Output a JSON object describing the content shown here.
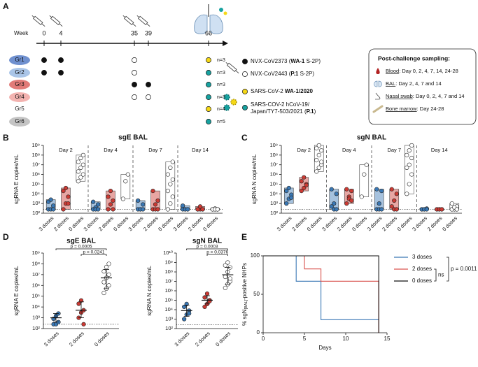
{
  "panels": [
    "A",
    "B",
    "C",
    "D",
    "E"
  ],
  "schedule": {
    "week_label": "Week",
    "weeks": [
      "0",
      "4",
      "35",
      "39",
      "66"
    ],
    "mark_styles": {
      "filled": "#111111",
      "open": "#ffffff",
      "wa1": "#f5d816",
      "p1": "#17a2a0"
    },
    "groups": [
      {
        "label": "Gr1",
        "color": "#6f90cf",
        "n": "n=3",
        "marks": [
          "filled",
          "filled",
          "open",
          null,
          "wa1"
        ]
      },
      {
        "label": "Gr2",
        "color": "#aac5e8",
        "n": "n=3",
        "marks": [
          "filled",
          "filled",
          "open",
          null,
          "p1"
        ]
      },
      {
        "label": "Gr3",
        "color": "#e27b78",
        "n": "n=3",
        "marks": [
          null,
          null,
          "filled",
          "filled",
          "p1"
        ]
      },
      {
        "label": "Gr4",
        "color": "#f3b3b0",
        "n": "n=3",
        "marks": [
          null,
          null,
          "open",
          "open",
          "p1"
        ]
      },
      {
        "label": "Gr5",
        "color": null,
        "n": "n=4",
        "marks": [
          null,
          null,
          null,
          null,
          "wa1"
        ]
      },
      {
        "label": "Gr6",
        "color": "#c4c4c4",
        "n": "n=5",
        "marks": [
          null,
          null,
          null,
          null,
          "p1"
        ]
      }
    ],
    "vaccines": [
      {
        "mark": "filled",
        "lines": [
          [
            "NVX-CoV2373 (",
            "WA-1",
            " S-2P)"
          ]
        ]
      },
      {
        "mark": "open",
        "lines": [
          [
            "NVX-CoV2443 (",
            "P.1",
            " S-2P)"
          ]
        ]
      }
    ],
    "challenges": [
      {
        "mark": "wa1",
        "lines": [
          [
            "SARS-CoV-2 ",
            "WA-1/2020"
          ]
        ]
      },
      {
        "mark": "p1",
        "lines": [
          [
            "SARS-COV-2 hCoV-19/"
          ],
          [
            "Japan/TY7-503/2021 (",
            "P.1",
            ")"
          ]
        ]
      }
    ],
    "sampling": {
      "title": "Post-challenge sampling:",
      "items": [
        {
          "icon": "blood",
          "parts": [
            "Blood",
            ": Day 0, 2, 4, 7, 14, 24-28"
          ]
        },
        {
          "icon": "lung",
          "parts": [
            "BAL",
            ": Day 2, 4, 7 and 14"
          ]
        },
        {
          "icon": "nose",
          "parts": [
            "Nasal swab",
            ": Day 0, 2, 4, 7 and 14"
          ]
        },
        {
          "icon": "bone",
          "parts": [
            "Bone marrow",
            ": Day 24-28"
          ]
        }
      ]
    }
  },
  "chart_data": [
    {
      "type": "dot-box",
      "title": "sgE BAL",
      "ylabel": "sgRNA E copies/mL",
      "log": true,
      "ylim": [
        100,
        1000000000
      ],
      "yticks": [
        {
          "value": 100,
          "label": "10²"
        },
        {
          "value": 1000,
          "label": "10³"
        },
        {
          "value": 10000,
          "label": "10⁴"
        },
        {
          "value": 100000,
          "label": "10⁵"
        },
        {
          "value": 1000000,
          "label": "10⁶"
        },
        {
          "value": 10000000,
          "label": "10⁷"
        },
        {
          "value": 100000000,
          "label": "10⁸"
        },
        {
          "value": 1000000000,
          "label": "10⁹"
        }
      ],
      "reference_line": 250,
      "facets": [
        "Day 2",
        "Day 4",
        "Day 7",
        "Day 14"
      ],
      "categories": [
        "3 doses",
        "2 doses",
        "0 doses"
      ],
      "colors": [
        "#3a78b5",
        "#cc3a33",
        "#ffffff"
      ],
      "values": [
        [
          [
            250,
            250,
            600,
            1500,
            2500,
            250
          ],
          [
            250,
            1000,
            5000,
            20000,
            40000,
            1000
          ],
          [
            200000,
            500000,
            1000000,
            2000000,
            5000000,
            10000000,
            20000000,
            50000000,
            100000000
          ]
        ],
        [
          [
            250,
            400,
            800,
            1500,
            250,
            250
          ],
          [
            250,
            800,
            2000,
            5000,
            20000,
            250
          ],
          [
            3000,
            200000,
            1000000
          ]
        ],
        [
          [
            250,
            250,
            800,
            2000,
            250,
            250
          ],
          [
            250,
            800,
            2000,
            20000,
            250,
            250
          ],
          [
            250,
            1000,
            5000,
            20000,
            100000,
            300000,
            1000000,
            5000000,
            20000000
          ]
        ],
        [
          [
            250,
            250,
            250,
            600,
            250,
            250
          ],
          [
            250,
            250,
            250,
            250,
            500,
            250
          ],
          [
            250,
            250,
            250,
            250,
            300,
            250,
            250,
            250,
            250
          ]
        ]
      ]
    },
    {
      "type": "dot-box",
      "title": "sgN BAL",
      "ylabel": "sgRNA N copies/mL",
      "log": true,
      "ylim": [
        100,
        1000000000
      ],
      "yticks": [
        {
          "value": 100,
          "label": "10²"
        },
        {
          "value": 1000,
          "label": "10³"
        },
        {
          "value": 10000,
          "label": "10⁴"
        },
        {
          "value": 100000,
          "label": "10⁵"
        },
        {
          "value": 1000000,
          "label": "10⁶"
        },
        {
          "value": 10000000,
          "label": "10⁷"
        },
        {
          "value": 100000000,
          "label": "10⁸"
        },
        {
          "value": 1000000000,
          "label": "10⁹"
        }
      ],
      "reference_line": 250,
      "facets": [
        "Day 2",
        "Day 4",
        "Day 7",
        "Day 14"
      ],
      "categories": [
        "3 doses",
        "2 doses",
        "0 doses"
      ],
      "colors": [
        "#3a78b5",
        "#cc3a33",
        "#ffffff"
      ],
      "values": [
        [
          [
            1000,
            3000,
            8000,
            20000,
            40000,
            4000
          ],
          [
            20000,
            40000,
            100000,
            200000,
            500000,
            80000
          ],
          [
            2000000,
            5000000,
            10000000,
            30000000,
            100000000,
            300000000,
            500000000,
            1000000000,
            20000000
          ]
        ],
        [
          [
            500,
            1000,
            10000,
            30000,
            250,
            250
          ],
          [
            1000,
            5000,
            20000,
            30000,
            3000,
            2000
          ],
          [
            5000,
            1000000,
            10000000
          ]
        ],
        [
          [
            250,
            1000,
            20000,
            30000,
            250,
            250
          ],
          [
            500,
            2000,
            10000,
            30000,
            250,
            250
          ],
          [
            10000,
            100000,
            1000000,
            5000000,
            10000000,
            50000000,
            100000000,
            300000000,
            1000000000
          ]
        ],
        [
          [
            250,
            250,
            300,
            250,
            250,
            250
          ],
          [
            250,
            250,
            250,
            250,
            250,
            250
          ],
          [
            250,
            300,
            500,
            1000,
            250,
            250,
            250,
            400,
            250
          ]
        ]
      ]
    },
    {
      "type": "dot-summary",
      "title": "sgE BAL",
      "ylabel": "sgRNA E copies/mL",
      "log": true,
      "ylim": [
        100,
        1000000000
      ],
      "yticks": [
        {
          "value": 100,
          "label": "10²"
        },
        {
          "value": 1000,
          "label": "10³"
        },
        {
          "value": 10000,
          "label": "10⁴"
        },
        {
          "value": 100000,
          "label": "10⁵"
        },
        {
          "value": 1000000,
          "label": "10⁶"
        },
        {
          "value": 10000000,
          "label": "10⁷"
        },
        {
          "value": 100000000,
          "label": "10⁸"
        },
        {
          "value": 1000000000,
          "label": "10⁹"
        }
      ],
      "reference_line": 250,
      "categories": [
        "3 doses",
        "2 doses",
        "0 doses"
      ],
      "colors": [
        "#3a78b5",
        "#cc3a33",
        "#ffffff"
      ],
      "values": [
        [
          250,
          250,
          400,
          800,
          1500,
          2500
        ],
        [
          1000,
          3000,
          5000,
          20000,
          40000,
          250
        ],
        [
          200000,
          500000,
          1000000,
          2000000,
          5000000,
          10000000,
          20000000,
          50000000,
          100000000
        ]
      ],
      "summary": [
        {
          "center": 1000,
          "low": 400,
          "high": 2500
        },
        {
          "center": 5000,
          "low": 1000,
          "high": 30000
        },
        {
          "center": 5000000,
          "low": 500000,
          "high": 30000000
        }
      ],
      "comparisons": [
        {
          "label": "p = 0.0005",
          "between": [
            0,
            2
          ]
        },
        {
          "label": "p = 0.0241",
          "between": [
            1,
            2
          ]
        }
      ]
    },
    {
      "type": "dot-summary",
      "title": "sgN BAL",
      "ylabel": "sgRNA N copies/mL",
      "log": true,
      "ylim": [
        100,
        10000000000
      ],
      "yticks": [
        {
          "value": 100,
          "label": "10²"
        },
        {
          "value": 1000,
          "label": "10³"
        },
        {
          "value": 10000,
          "label": "10⁴"
        },
        {
          "value": 100000,
          "label": "10⁵"
        },
        {
          "value": 1000000,
          "label": "10⁶"
        },
        {
          "value": 10000000,
          "label": "10⁷"
        },
        {
          "value": 100000000,
          "label": "10⁸"
        },
        {
          "value": 1000000000,
          "label": "10⁹"
        },
        {
          "value": 10000000000,
          "label": "10¹⁰"
        }
      ],
      "reference_line": 250,
      "categories": [
        "3 doses",
        "2 doses",
        "0 doses"
      ],
      "colors": [
        "#3a78b5",
        "#cc3a33",
        "#ffffff"
      ],
      "values": [
        [
          1000,
          3000,
          8000,
          20000,
          40000,
          4000
        ],
        [
          20000,
          40000,
          100000,
          200000,
          500000,
          80000
        ],
        [
          2000000,
          5000000,
          10000000,
          30000000,
          100000000,
          300000000,
          500000000,
          1000000000,
          20000000
        ]
      ],
      "summary": [
        {
          "center": 8000,
          "low": 2000,
          "high": 30000
        },
        {
          "center": 100000,
          "low": 40000,
          "high": 300000
        },
        {
          "center": 50000000,
          "low": 5000000,
          "high": 300000000
        }
      ],
      "comparisons": [
        {
          "label": "p = 0.0003",
          "between": [
            0,
            2
          ]
        },
        {
          "label": "p = 0.0376",
          "between": [
            1,
            2
          ]
        }
      ]
    },
    {
      "type": "step",
      "ylabel_parts": [
        "% sgN",
        "[BAL]",
        "-positive NHPs"
      ],
      "xlabel": "Days",
      "xlim": [
        0,
        15
      ],
      "xticks": [
        0,
        5,
        10,
        15
      ],
      "ylim": [
        0,
        100
      ],
      "yticks": [
        0,
        50,
        100
      ],
      "legend": "right",
      "series": [
        {
          "name": "3 doses",
          "color": "#3a78b5",
          "x": [
            0,
            4,
            4,
            7,
            7,
            14
          ],
          "values": [
            100,
            100,
            67,
            67,
            17,
            17
          ]
        },
        {
          "name": "2 doses",
          "color": "#d9534f",
          "x": [
            0,
            5,
            5,
            7,
            7,
            14,
            14
          ],
          "values": [
            100,
            100,
            83,
            83,
            67,
            67,
            0
          ]
        },
        {
          "name": "0 doses",
          "color": "#111111",
          "x": [
            0,
            14,
            14
          ],
          "values": [
            100,
            100,
            0
          ]
        }
      ],
      "comparisons": [
        {
          "label": "ns",
          "between": [
            1,
            2
          ]
        },
        {
          "label": "p = 0.0011",
          "between": [
            0,
            2
          ]
        }
      ]
    }
  ]
}
